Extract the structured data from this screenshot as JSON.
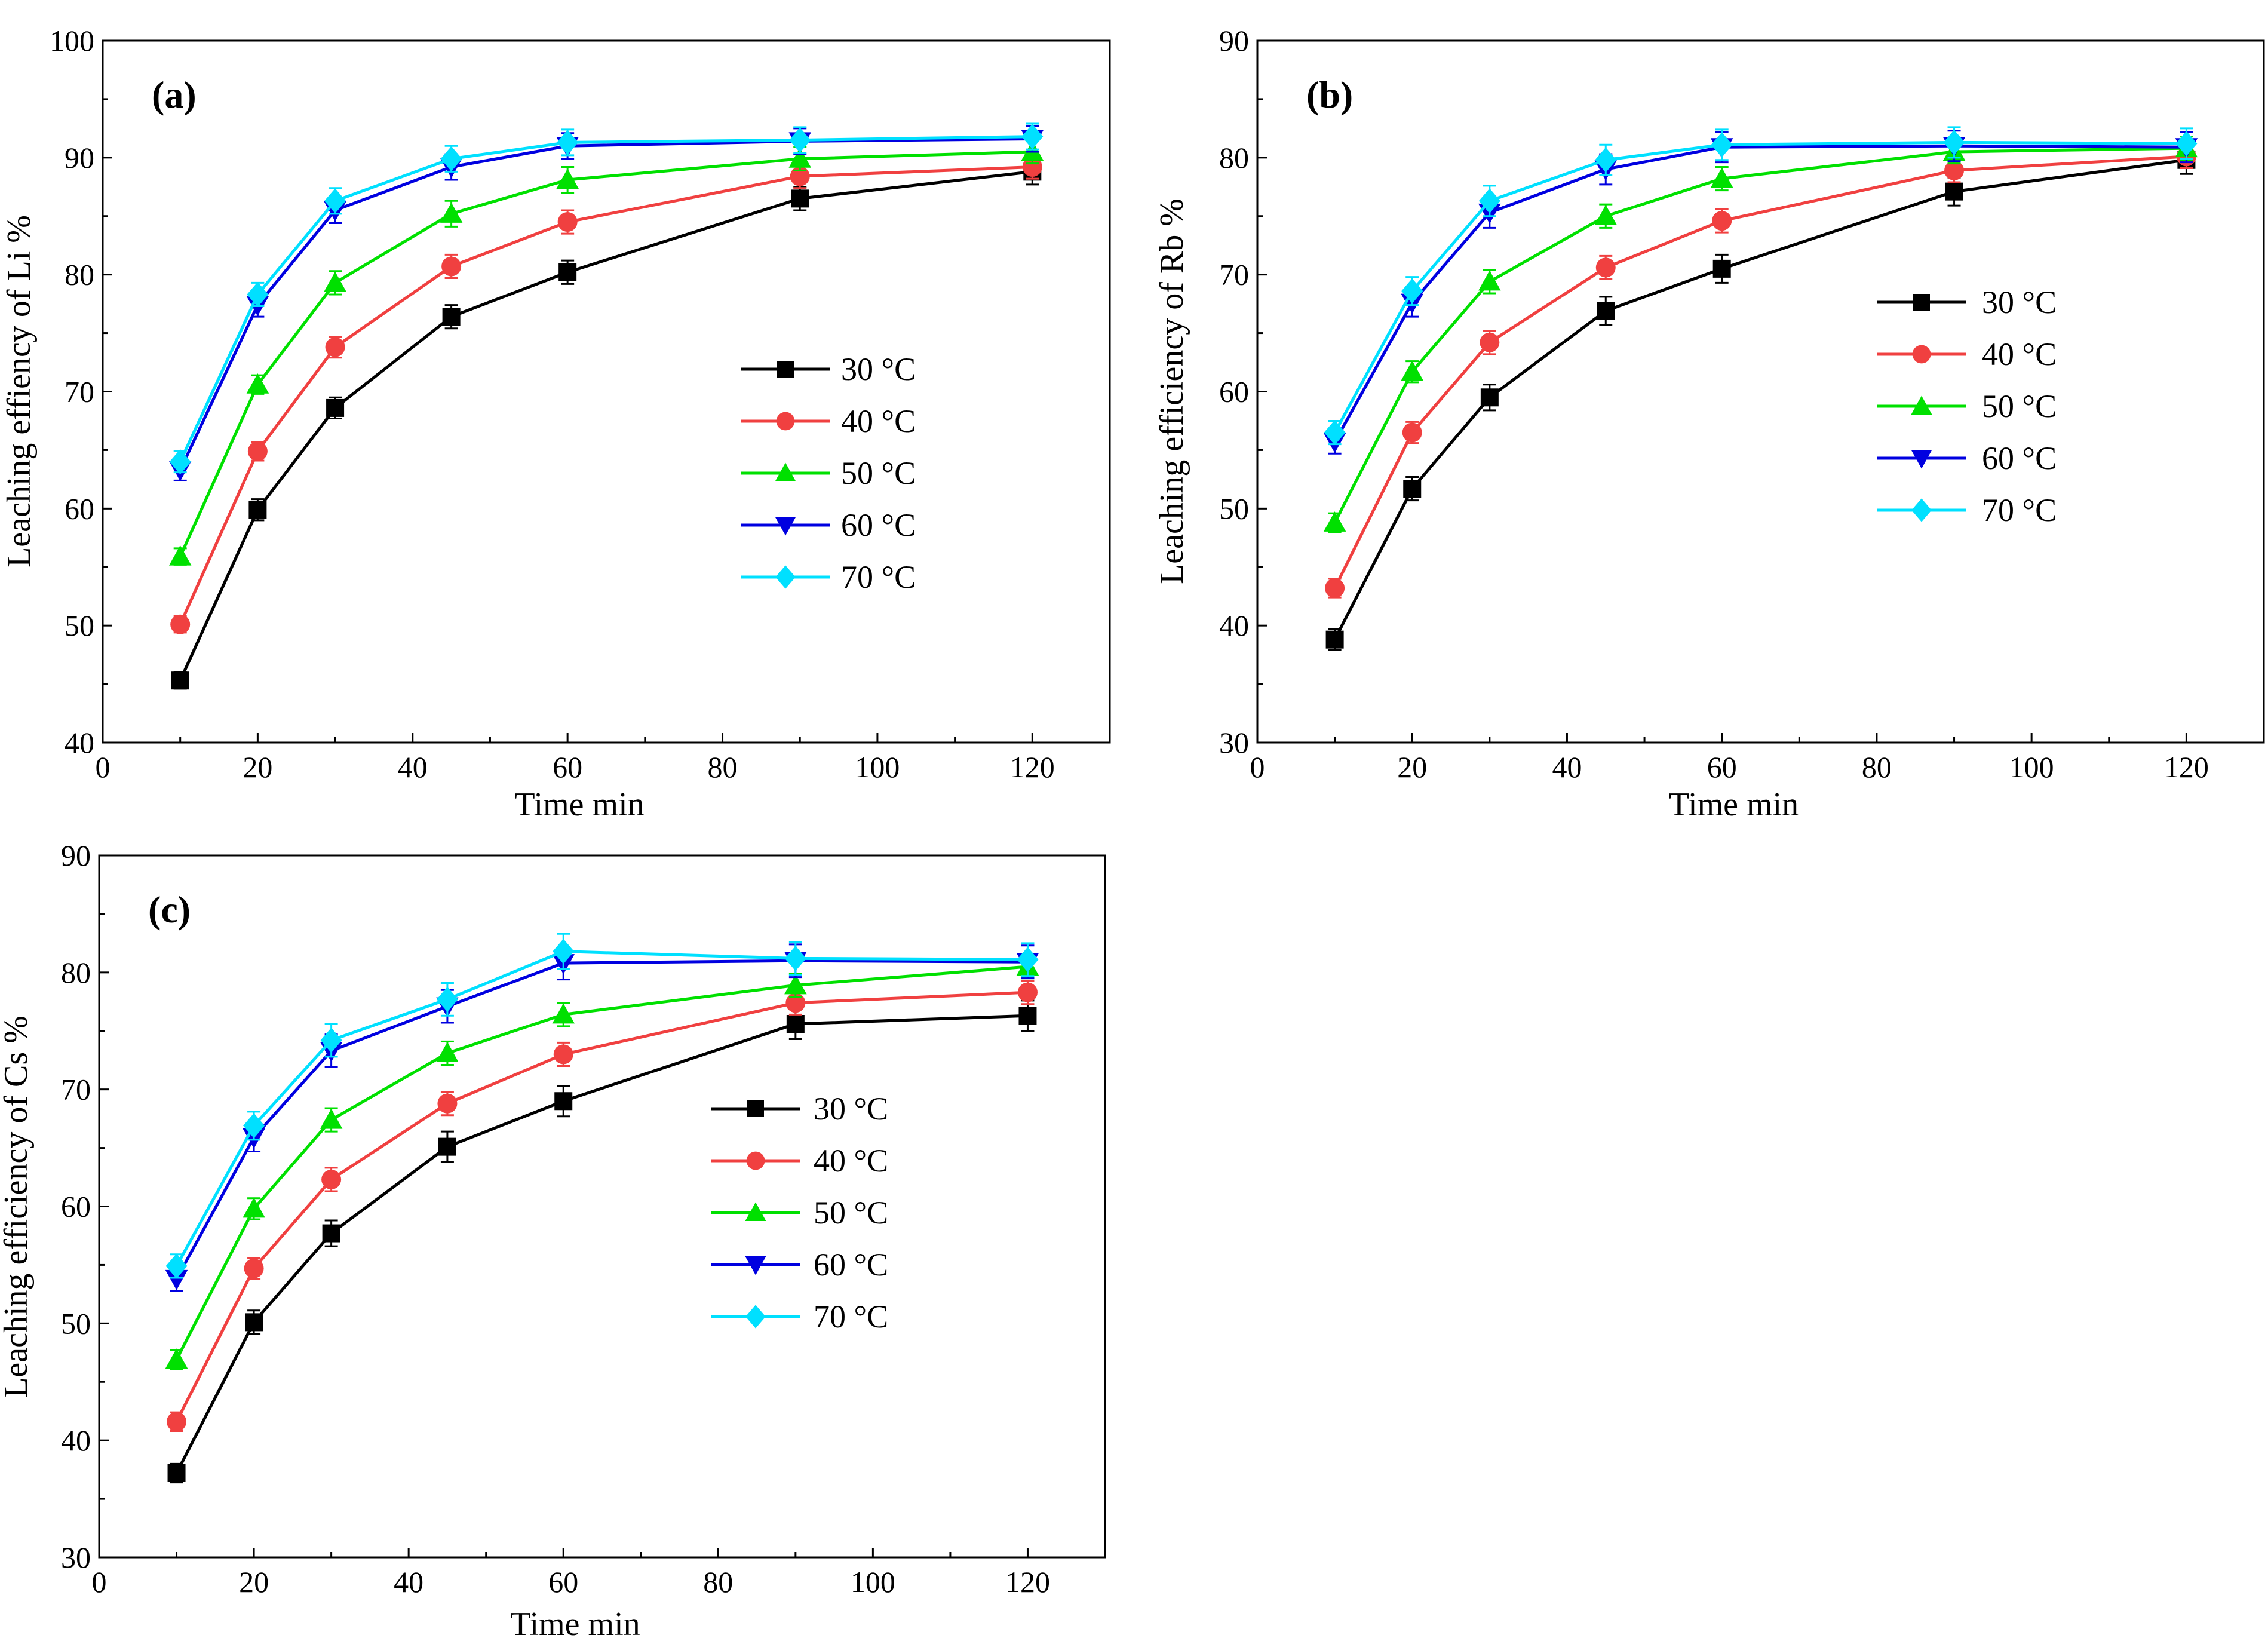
{
  "chart_data": [
    {
      "type": "line",
      "panel_label": "(a)",
      "xlabel": "Time min",
      "ylabel": "Leaching effiency of Li %",
      "xlim": [
        0,
        130
      ],
      "ylim": [
        40,
        100
      ],
      "xticks": [
        0,
        20,
        40,
        60,
        80,
        100,
        120
      ],
      "yticks": [
        40,
        50,
        60,
        70,
        80,
        90,
        100
      ],
      "x": [
        10,
        20,
        30,
        45,
        60,
        90,
        120
      ],
      "series": [
        {
          "name": "30 °C",
          "color": "#000000",
          "marker": "square",
          "values": [
            45.3,
            59.9,
            68.6,
            76.4,
            80.2,
            86.5,
            88.8
          ],
          "errors": [
            0.7,
            0.9,
            0.9,
            1.0,
            1.0,
            1.0,
            1.1
          ]
        },
        {
          "name": "40 °C",
          "color": "#f04040",
          "marker": "circle",
          "values": [
            50.1,
            64.9,
            73.8,
            80.7,
            84.5,
            88.4,
            89.2
          ],
          "errors": [
            0.7,
            0.8,
            0.9,
            1.0,
            1.0,
            1.0,
            1.0
          ]
        },
        {
          "name": "50 °C",
          "color": "#00e000",
          "marker": "triangle-up",
          "values": [
            55.9,
            70.6,
            79.3,
            85.2,
            88.1,
            89.9,
            90.5
          ],
          "errors": [
            0.7,
            0.8,
            1.0,
            1.1,
            1.1,
            1.0,
            1.0
          ]
        },
        {
          "name": "60 °C",
          "color": "#0000e0",
          "marker": "triangle-down",
          "values": [
            63.3,
            77.4,
            85.5,
            89.2,
            91.0,
            91.4,
            91.6
          ],
          "errors": [
            0.9,
            1.0,
            1.1,
            1.1,
            1.1,
            1.1,
            1.1
          ]
        },
        {
          "name": "70 °C",
          "color": "#00e0ff",
          "marker": "diamond",
          "values": [
            64.0,
            78.3,
            86.3,
            89.9,
            91.3,
            91.5,
            91.8
          ],
          "errors": [
            0.9,
            1.0,
            1.1,
            1.1,
            1.1,
            1.1,
            1.1
          ]
        }
      ]
    },
    {
      "type": "line",
      "panel_label": "(b)",
      "xlabel": "Time min",
      "ylabel": "Leaching efficiency of Rb %",
      "xlim": [
        0,
        130
      ],
      "ylim": [
        30,
        90
      ],
      "xticks": [
        0,
        20,
        40,
        60,
        80,
        100,
        120
      ],
      "yticks": [
        30,
        40,
        50,
        60,
        70,
        80,
        90
      ],
      "x": [
        10,
        20,
        30,
        45,
        60,
        90,
        120
      ],
      "series": [
        {
          "name": "30 °C",
          "color": "#000000",
          "marker": "square",
          "values": [
            38.8,
            51.7,
            59.5,
            66.9,
            70.5,
            77.1,
            79.8
          ],
          "errors": [
            0.9,
            1.0,
            1.1,
            1.2,
            1.2,
            1.2,
            1.2
          ]
        },
        {
          "name": "40 °C",
          "color": "#f04040",
          "marker": "circle",
          "values": [
            43.2,
            56.5,
            64.2,
            70.6,
            74.6,
            78.9,
            80.1
          ],
          "errors": [
            0.8,
            0.9,
            1.0,
            1.0,
            1.0,
            1.0,
            1.0
          ]
        },
        {
          "name": "50 °C",
          "color": "#00e000",
          "marker": "triangle-up",
          "values": [
            48.8,
            61.7,
            69.4,
            75.0,
            78.2,
            80.5,
            80.8
          ],
          "errors": [
            0.8,
            0.9,
            1.0,
            1.0,
            1.0,
            1.0,
            1.0
          ]
        },
        {
          "name": "60 °C",
          "color": "#0000e0",
          "marker": "triangle-down",
          "values": [
            55.7,
            67.6,
            75.3,
            79.0,
            80.9,
            81.0,
            80.9
          ],
          "errors": [
            1.0,
            1.2,
            1.3,
            1.3,
            1.3,
            1.3,
            1.3
          ]
        },
        {
          "name": "70 °C",
          "color": "#00e0ff",
          "marker": "diamond",
          "values": [
            56.5,
            68.6,
            76.3,
            79.8,
            81.1,
            81.3,
            81.2
          ],
          "errors": [
            1.0,
            1.2,
            1.3,
            1.3,
            1.3,
            1.3,
            1.3
          ]
        }
      ]
    },
    {
      "type": "line",
      "panel_label": "(c)",
      "xlabel": "Time min",
      "ylabel": "Leaching efficiency of Cs %",
      "xlim": [
        0,
        130
      ],
      "ylim": [
        30,
        90
      ],
      "xticks": [
        0,
        20,
        40,
        60,
        80,
        100,
        120
      ],
      "yticks": [
        30,
        40,
        50,
        60,
        70,
        80,
        90
      ],
      "x": [
        10,
        20,
        30,
        45,
        60,
        90,
        120
      ],
      "series": [
        {
          "name": "30 °C",
          "color": "#000000",
          "marker": "square",
          "values": [
            37.2,
            50.1,
            57.7,
            65.1,
            69.0,
            75.6,
            76.3
          ],
          "errors": [
            0.8,
            1.0,
            1.1,
            1.3,
            1.3,
            1.3,
            1.3
          ]
        },
        {
          "name": "40 °C",
          "color": "#f04040",
          "marker": "circle",
          "values": [
            41.6,
            54.7,
            62.3,
            68.8,
            73.0,
            77.4,
            78.3
          ],
          "errors": [
            0.8,
            0.9,
            1.0,
            1.0,
            1.0,
            1.0,
            1.0
          ]
        },
        {
          "name": "50 °C",
          "color": "#00e000",
          "marker": "triangle-up",
          "values": [
            46.9,
            59.8,
            67.4,
            73.1,
            76.4,
            78.9,
            80.5
          ],
          "errors": [
            0.8,
            0.9,
            1.0,
            1.0,
            1.0,
            1.0,
            1.0
          ]
        },
        {
          "name": "60 °C",
          "color": "#0000e0",
          "marker": "triangle-down",
          "values": [
            53.8,
            65.9,
            73.3,
            77.1,
            80.8,
            81.0,
            80.9
          ],
          "errors": [
            1.0,
            1.2,
            1.4,
            1.4,
            1.4,
            1.4,
            1.4
          ]
        },
        {
          "name": "70 °C",
          "color": "#00e0ff",
          "marker": "diamond",
          "values": [
            54.9,
            66.9,
            74.2,
            77.7,
            81.8,
            81.2,
            81.1
          ],
          "errors": [
            1.0,
            1.2,
            1.4,
            1.4,
            1.5,
            1.4,
            1.4
          ]
        }
      ]
    }
  ]
}
